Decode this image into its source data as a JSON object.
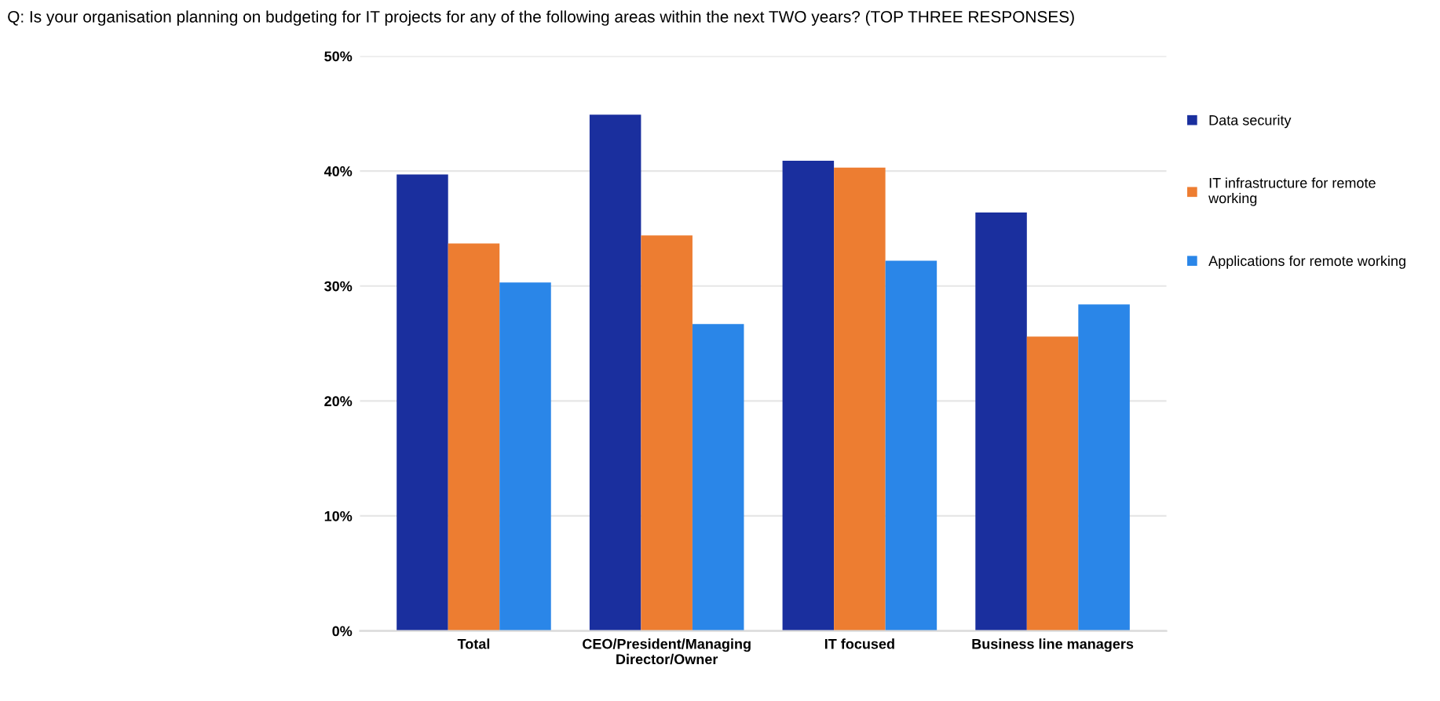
{
  "chart_data": {
    "type": "bar",
    "title": "Q: Is your organisation planning on budgeting for IT projects for any of the following areas within the next TWO years? (TOP THREE RESPONSES)",
    "categories": [
      "Total",
      "CEO/President/Managing\nDirector/Owner",
      "IT focused",
      "Business line managers"
    ],
    "series": [
      {
        "name": "Data security",
        "color": "#1a2f9e",
        "values": [
          39.7,
          44.9,
          40.9,
          36.4
        ]
      },
      {
        "name": "IT infrastructure for remote\nworking",
        "color": "#ed7d31",
        "values": [
          33.7,
          34.4,
          40.3,
          25.6
        ]
      },
      {
        "name": "Applications for remote working",
        "color": "#2a86e8",
        "values": [
          30.3,
          26.7,
          32.2,
          28.4
        ]
      }
    ],
    "ylim": [
      0,
      50
    ],
    "yticks": [
      {
        "value": 0,
        "label": "0%"
      },
      {
        "value": 10,
        "label": "10%"
      },
      {
        "value": 20,
        "label": "20%"
      },
      {
        "value": 30,
        "label": "30%"
      },
      {
        "value": 40,
        "label": "40%"
      },
      {
        "value": 50,
        "label": "50%"
      }
    ],
    "grid": "y",
    "legend": "right"
  }
}
